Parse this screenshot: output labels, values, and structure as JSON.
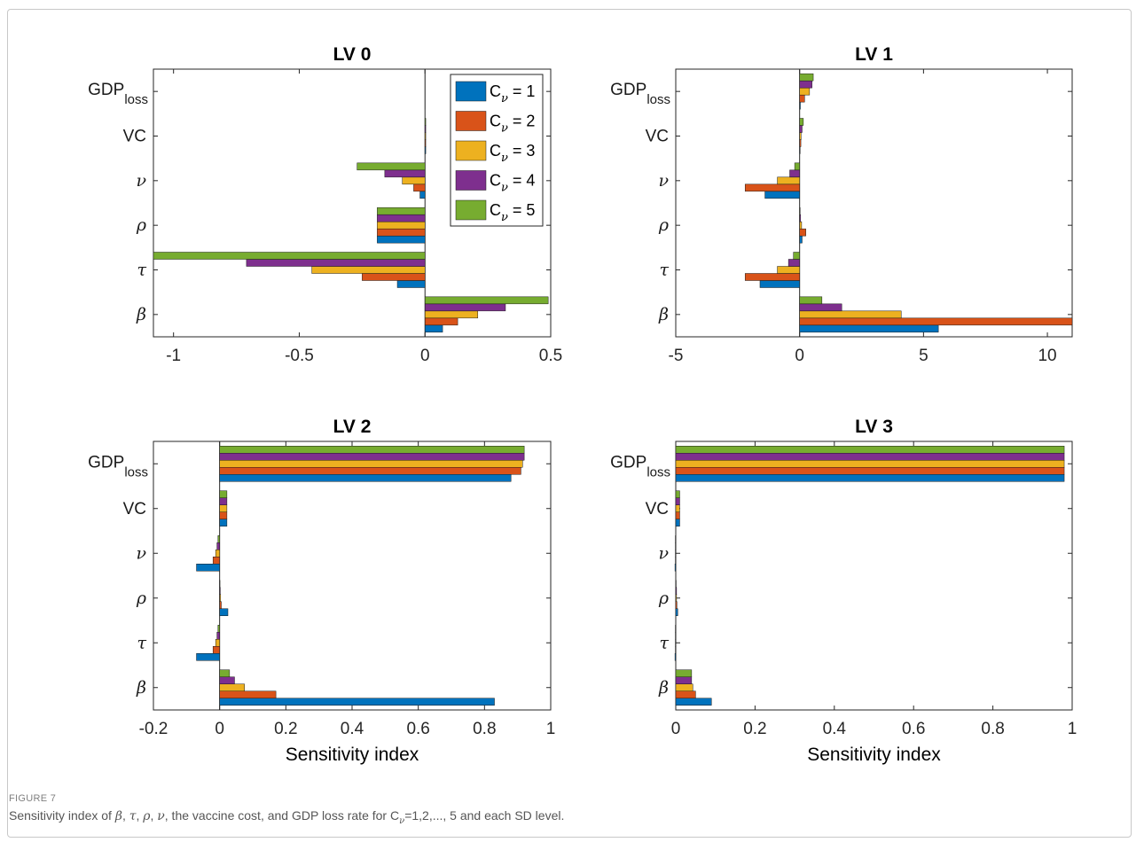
{
  "figure": {
    "label": "FIGURE 7",
    "caption": {
      "p1": "Sensitivity index of ",
      "beta": "β",
      "sep1": ", ",
      "tau": "τ",
      "sep2": ", ",
      "rho": "ρ",
      "sep3": ", ",
      "nu": "ν",
      "p2": ", the vaccine cost, and GDP loss rate for C",
      "sub": "ν",
      "p3": "=1,2,..., 5 and each SD level."
    }
  },
  "legend": {
    "prefix": "C",
    "sub": "ν",
    "entries": [
      "= 1",
      "= 2",
      "= 3",
      "= 4",
      "= 5"
    ]
  },
  "colors": [
    "#0072BD",
    "#D95319",
    "#EDB120",
    "#7E2F8E",
    "#77AC30"
  ],
  "chart_data": [
    {
      "type": "bar",
      "orientation": "horizontal",
      "title": "LV 0",
      "xlabel": "",
      "categories": [
        "β",
        "τ",
        "ρ",
        "ν",
        "VC",
        "GDP_loss"
      ],
      "xlim": [
        -1.08,
        0.5
      ],
      "xticks": [
        -1,
        -0.5,
        0,
        0.5
      ],
      "xtick_labels": [
        "-1",
        "-0.5",
        "0",
        "0.5"
      ],
      "legend": "top-right",
      "series": [
        {
          "name": "Cν = 1",
          "values": [
            0.07,
            -0.11,
            -0.19,
            -0.02,
            0.003,
            0.0
          ]
        },
        {
          "name": "Cν = 2",
          "values": [
            0.13,
            -0.25,
            -0.19,
            -0.045,
            0.003,
            0.0
          ]
        },
        {
          "name": "Cν = 3",
          "values": [
            0.21,
            -0.45,
            -0.19,
            -0.09,
            0.003,
            0.0
          ]
        },
        {
          "name": "Cν = 4",
          "values": [
            0.32,
            -0.71,
            -0.19,
            -0.16,
            0.003,
            0.0
          ]
        },
        {
          "name": "Cν = 5",
          "values": [
            0.49,
            -1.08,
            -0.19,
            -0.27,
            0.003,
            0.0
          ]
        }
      ]
    },
    {
      "type": "bar",
      "orientation": "horizontal",
      "title": "LV 1",
      "xlabel": "",
      "categories": [
        "β",
        "τ",
        "ρ",
        "ν",
        "VC",
        "GDP_loss"
      ],
      "xlim": [
        -5,
        11
      ],
      "xticks": [
        -5,
        0,
        5,
        10
      ],
      "xtick_labels": [
        "-5",
        "0",
        "5",
        "10"
      ],
      "series": [
        {
          "name": "Cν = 1",
          "values": [
            5.6,
            -1.6,
            0.1,
            -1.4,
            0.02,
            0.03
          ]
        },
        {
          "name": "Cν = 2",
          "values": [
            11.0,
            -2.2,
            0.25,
            -2.2,
            0.05,
            0.2
          ]
        },
        {
          "name": "Cν = 3",
          "values": [
            4.1,
            -0.9,
            0.08,
            -0.9,
            0.06,
            0.4
          ]
        },
        {
          "name": "Cν = 4",
          "values": [
            1.7,
            -0.45,
            0.04,
            -0.4,
            0.1,
            0.5
          ]
        },
        {
          "name": "Cν = 5",
          "values": [
            0.9,
            -0.25,
            0.02,
            -0.2,
            0.15,
            0.55
          ]
        }
      ]
    },
    {
      "type": "bar",
      "orientation": "horizontal",
      "title": "LV 2",
      "xlabel": "Sensitivity index",
      "categories": [
        "β",
        "τ",
        "ρ",
        "ν",
        "VC",
        "GDP_loss"
      ],
      "xlim": [
        -0.2,
        1
      ],
      "xticks": [
        -0.2,
        0,
        0.2,
        0.4,
        0.6,
        0.8,
        1
      ],
      "xtick_labels": [
        "-0.2",
        "0",
        "0.2",
        "0.4",
        "0.6",
        "0.8",
        "1"
      ],
      "series": [
        {
          "name": "Cν = 1",
          "values": [
            0.83,
            -0.07,
            0.025,
            -0.07,
            0.022,
            0.88
          ]
        },
        {
          "name": "Cν = 2",
          "values": [
            0.17,
            -0.02,
            0.005,
            -0.02,
            0.022,
            0.91
          ]
        },
        {
          "name": "Cν = 3",
          "values": [
            0.075,
            -0.012,
            0.003,
            -0.012,
            0.022,
            0.915
          ]
        },
        {
          "name": "Cν = 4",
          "values": [
            0.045,
            -0.008,
            0.002,
            -0.008,
            0.022,
            0.92
          ]
        },
        {
          "name": "Cν = 5",
          "values": [
            0.03,
            -0.005,
            0.001,
            -0.005,
            0.022,
            0.92
          ]
        }
      ]
    },
    {
      "type": "bar",
      "orientation": "horizontal",
      "title": "LV 3",
      "xlabel": "Sensitivity index",
      "categories": [
        "β",
        "τ",
        "ρ",
        "ν",
        "VC",
        "GDP_loss"
      ],
      "xlim": [
        0,
        1
      ],
      "xticks": [
        0,
        0.2,
        0.4,
        0.6,
        0.8,
        1
      ],
      "xtick_labels": [
        "0",
        "0.2",
        "0.4",
        "0.6",
        "0.8",
        "1"
      ],
      "series": [
        {
          "name": "Cν = 1",
          "values": [
            0.09,
            -0.002,
            0.005,
            -0.002,
            0.01,
            0.98
          ]
        },
        {
          "name": "Cν = 2",
          "values": [
            0.05,
            -0.001,
            0.003,
            -0.001,
            0.01,
            0.98
          ]
        },
        {
          "name": "Cν = 3",
          "values": [
            0.043,
            -0.001,
            0.002,
            -0.001,
            0.01,
            0.98
          ]
        },
        {
          "name": "Cν = 4",
          "values": [
            0.04,
            -0.001,
            0.002,
            -0.001,
            0.01,
            0.98
          ]
        },
        {
          "name": "Cν = 5",
          "values": [
            0.04,
            -0.001,
            0.001,
            -0.001,
            0.01,
            0.98
          ]
        }
      ]
    }
  ]
}
